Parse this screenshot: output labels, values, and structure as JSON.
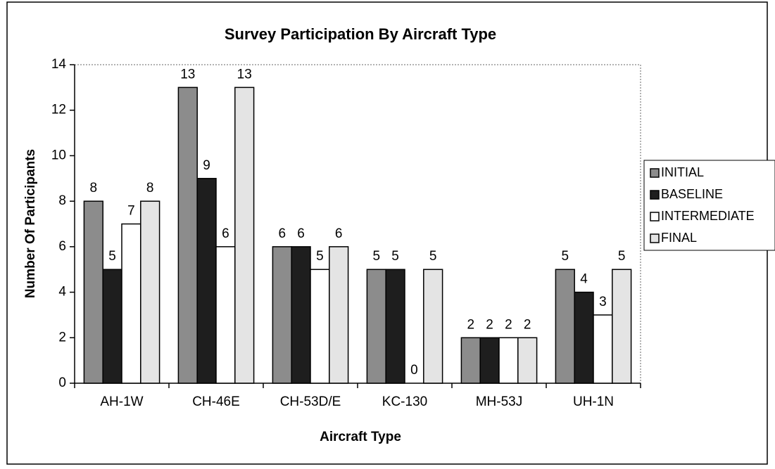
{
  "chart_data": {
    "type": "bar",
    "title": "Survey Participation By Aircraft Type",
    "x_label": "Aircraft Type",
    "y_label": "Number Of Participants",
    "categories": [
      "AH-1W",
      "CH-46E",
      "CH-53D/E",
      "KC-130",
      "MH-53J",
      "UH-1N"
    ],
    "series": [
      {
        "name": "INITIAL",
        "color": "#8c8c8c",
        "values": [
          8,
          13,
          6,
          5,
          2,
          5
        ]
      },
      {
        "name": "BASELINE",
        "color": "#1e1e1e",
        "values": [
          5,
          9,
          6,
          5,
          2,
          4
        ]
      },
      {
        "name": "INTERMEDIATE",
        "color": "#ffffff",
        "values": [
          7,
          6,
          5,
          0,
          2,
          3
        ]
      },
      {
        "name": "FINAL",
        "color": "#e4e4e4",
        "values": [
          8,
          13,
          6,
          5,
          2,
          5
        ]
      }
    ],
    "ylim": [
      0,
      14
    ],
    "yticks": [
      0,
      2,
      4,
      6,
      8,
      10,
      12,
      14
    ],
    "grid": false,
    "legend": "right"
  }
}
